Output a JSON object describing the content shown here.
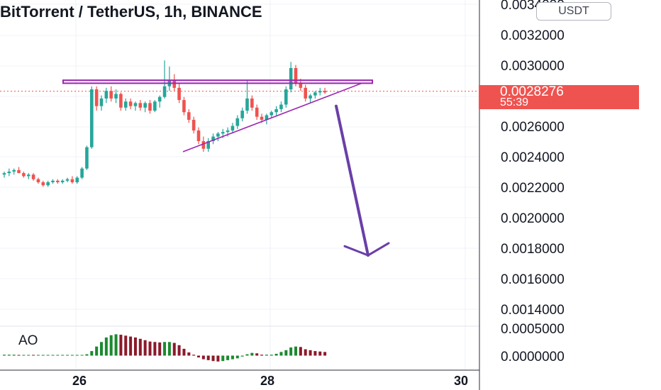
{
  "header": {
    "title": "BitTorrent / TetherUS, 1h, BINANCE"
  },
  "currency_button": {
    "label": "USDT"
  },
  "price_scale": {
    "ticks": [
      "0.0034000",
      "0.0032000",
      "0.0030000",
      "0.0026000",
      "0.0024000",
      "0.0022000",
      "0.0020000",
      "0.0018000",
      "0.0016000",
      "0.0014000"
    ],
    "last_price": "0.0028276",
    "countdown": "55:39",
    "last_price_color": "#ef5350"
  },
  "indicator": {
    "name": "AO",
    "scale_ticks": [
      "0.0005000",
      "0.0000000"
    ]
  },
  "time_axis": {
    "labels": [
      "26",
      "28",
      "30"
    ]
  },
  "colors": {
    "up": "#26a69a",
    "down": "#ef5350",
    "ao_up": "#1b8a2f",
    "ao_down": "#8b1a2a",
    "drawing": "#9c27b0",
    "arrow": "#6a3fa8"
  },
  "chart_data": {
    "type": "candlestick",
    "title": "BitTorrent / TetherUS, 1h, BINANCE",
    "y_range": [
      0.00127,
      0.00352
    ],
    "current_price": 0.0028276,
    "x_labels": [
      "26",
      "28",
      "30"
    ],
    "drawings": [
      "rectangle resistance zone ~0.00288-0.00290",
      "ascending trendline",
      "downward arrow target ~0.00175"
    ],
    "candles": [
      [
        0.00228,
        0.0023,
        0.00226,
        0.00229
      ],
      [
        0.00229,
        0.00232,
        0.00227,
        0.0023
      ],
      [
        0.0023,
        0.00232,
        0.00228,
        0.00231
      ],
      [
        0.00231,
        0.00233,
        0.00229,
        0.00229
      ],
      [
        0.00229,
        0.0023,
        0.00226,
        0.00227
      ],
      [
        0.00227,
        0.00229,
        0.00225,
        0.00228
      ],
      [
        0.00228,
        0.00229,
        0.00224,
        0.00225
      ],
      [
        0.00225,
        0.00226,
        0.00222,
        0.00223
      ],
      [
        0.00223,
        0.00224,
        0.0022,
        0.00221
      ],
      [
        0.00221,
        0.00224,
        0.0022,
        0.00223
      ],
      [
        0.00223,
        0.00225,
        0.00222,
        0.00224
      ],
      [
        0.00224,
        0.00225,
        0.00222,
        0.00223
      ],
      [
        0.00223,
        0.00225,
        0.00222,
        0.00224
      ],
      [
        0.00224,
        0.00226,
        0.00223,
        0.00225
      ],
      [
        0.00225,
        0.00227,
        0.00222,
        0.00223
      ],
      [
        0.00223,
        0.00227,
        0.00222,
        0.00226
      ],
      [
        0.00226,
        0.00233,
        0.00225,
        0.00232
      ],
      [
        0.00232,
        0.00247,
        0.00231,
        0.00246
      ],
      [
        0.00246,
        0.00286,
        0.00245,
        0.00284
      ],
      [
        0.00284,
        0.00286,
        0.0027,
        0.00273
      ],
      [
        0.00273,
        0.0028,
        0.0027,
        0.00278
      ],
      [
        0.00278,
        0.00285,
        0.00275,
        0.00283
      ],
      [
        0.00283,
        0.00286,
        0.00276,
        0.00278
      ],
      [
        0.00278,
        0.00284,
        0.00275,
        0.00281
      ],
      [
        0.00281,
        0.00282,
        0.0027,
        0.00272
      ],
      [
        0.00272,
        0.00278,
        0.0027,
        0.00276
      ],
      [
        0.00276,
        0.00278,
        0.00271,
        0.00273
      ],
      [
        0.00273,
        0.00276,
        0.0027,
        0.00275
      ],
      [
        0.00275,
        0.00277,
        0.0027,
        0.00272
      ],
      [
        0.00272,
        0.00276,
        0.00269,
        0.00275
      ],
      [
        0.00275,
        0.00277,
        0.00268,
        0.0027
      ],
      [
        0.0027,
        0.00277,
        0.00269,
        0.00276
      ],
      [
        0.00276,
        0.0028,
        0.00272,
        0.00279
      ],
      [
        0.00279,
        0.00303,
        0.00278,
        0.00286
      ],
      [
        0.00286,
        0.00299,
        0.00283,
        0.0029
      ],
      [
        0.0029,
        0.00294,
        0.00283,
        0.00285
      ],
      [
        0.00285,
        0.00288,
        0.00275,
        0.00277
      ],
      [
        0.00277,
        0.00279,
        0.00267,
        0.00269
      ],
      [
        0.00269,
        0.00271,
        0.00262,
        0.00264
      ],
      [
        0.00264,
        0.00266,
        0.00255,
        0.00257
      ],
      [
        0.00257,
        0.00259,
        0.00248,
        0.0025
      ],
      [
        0.0025,
        0.00253,
        0.00243,
        0.00245
      ],
      [
        0.00245,
        0.00252,
        0.00243,
        0.0025
      ],
      [
        0.0025,
        0.00255,
        0.00248,
        0.00253
      ],
      [
        0.00253,
        0.00256,
        0.0025,
        0.00255
      ],
      [
        0.00255,
        0.00258,
        0.00252,
        0.00256
      ],
      [
        0.00256,
        0.00259,
        0.00253,
        0.00257
      ],
      [
        0.00257,
        0.00262,
        0.00255,
        0.0026
      ],
      [
        0.0026,
        0.00267,
        0.00258,
        0.00265
      ],
      [
        0.00265,
        0.00272,
        0.00263,
        0.0027
      ],
      [
        0.0027,
        0.0029,
        0.00268,
        0.00278
      ],
      [
        0.00278,
        0.0028,
        0.0027,
        0.00272
      ],
      [
        0.00272,
        0.00274,
        0.00264,
        0.00266
      ],
      [
        0.00266,
        0.00268,
        0.00262,
        0.00264
      ],
      [
        0.00264,
        0.00268,
        0.00261,
        0.00267
      ],
      [
        0.00267,
        0.0027,
        0.00265,
        0.00269
      ],
      [
        0.00269,
        0.00273,
        0.00267,
        0.00271
      ],
      [
        0.00271,
        0.00276,
        0.00269,
        0.00274
      ],
      [
        0.00274,
        0.00286,
        0.00272,
        0.00284
      ],
      [
        0.00284,
        0.00302,
        0.00282,
        0.00298
      ],
      [
        0.00298,
        0.003,
        0.00286,
        0.00288
      ],
      [
        0.00288,
        0.00291,
        0.00283,
        0.00285
      ],
      [
        0.00285,
        0.00287,
        0.00276,
        0.00278
      ],
      [
        0.00278,
        0.00281,
        0.00275,
        0.0028
      ],
      [
        0.0028,
        0.00283,
        0.00278,
        0.00282
      ],
      [
        0.00282,
        0.00285,
        0.0028,
        0.00283
      ],
      [
        0.00283,
        0.00285,
        0.00281,
        0.00282
      ]
    ],
    "ao_values": [
      2e-05,
      2e-05,
      2e-05,
      1e-05,
      1e-05,
      1e-05,
      0.0,
      0.0,
      0.0,
      0.0,
      0.0,
      0.0,
      0.0,
      0.0,
      0.0,
      0.0,
      1e-05,
      3e-05,
      0.0001,
      0.0002,
      0.0003,
      0.0004,
      0.00045,
      0.00047,
      0.00046,
      0.00044,
      0.00042,
      0.0004,
      0.00037,
      0.00034,
      0.00031,
      0.0003,
      0.00029,
      0.0003,
      0.0003,
      0.00028,
      0.00023,
      0.00015,
      7e-05,
      2e-05,
      -4e-05,
      -8e-05,
      -0.0001,
      -0.00012,
      -0.00013,
      -0.00012,
      -0.0001,
      -8e-05,
      -6e-05,
      -2e-05,
      3e-05,
      6e-05,
      5e-05,
      2e-05,
      2e-05,
      2e-05,
      4e-05,
      8e-05,
      0.00012,
      0.00018,
      0.0002,
      0.00019,
      0.00014,
      0.00012,
      0.0001,
      9e-05,
      8e-05
    ]
  }
}
